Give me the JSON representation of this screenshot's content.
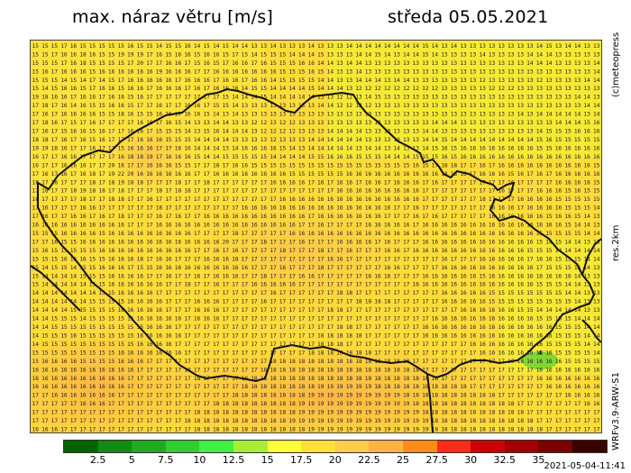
{
  "header": {
    "title": "max. náraz větru [m/s]",
    "date": "středa 05.05.2021"
  },
  "side_labels": {
    "copyright": "(c)meteopress",
    "resolution": "res.2km",
    "model": "WRFv3.9-ARW-S1"
  },
  "timestamp": "2021-05-04-11:41",
  "colorbar": {
    "colors": [
      "#006400",
      "#138b13",
      "#22aa22",
      "#33cc33",
      "#44ee44",
      "#aaee33",
      "#ffff33",
      "#ffe034",
      "#ffcc4d",
      "#ffb347",
      "#ff8c1a",
      "#ff2a1a",
      "#cc0000",
      "#a00000",
      "#7a0000",
      "#3a0000"
    ],
    "tick_labels": [
      "2.5",
      "5",
      "7.5",
      "10",
      "12.5",
      "15",
      "17.5",
      "20",
      "22.5",
      "25",
      "27.5",
      "30",
      "32.5",
      "35"
    ]
  },
  "map": {
    "region": "Czech Republic",
    "value_rows": [
      "15 15 15 17 16 15 15 15 15 15 16 15 15 14 15 15 16 14 15 14 15 14 14 13 13 14 13 13 13 14 13 13 13 14 14 14 14 14 14 14 14 15 14 13 14 13 13 13 13 13 13 13 13 14 15 13 14 14 13 13",
      "15 15 17 16 16 18 16 15 15 19 19 19 17 16 15 16 16 15 16 16 15 17 15 14 15 15 15 14 14 14 15 13 13 13 14 14 15 14 13 14 14 15 14 13 13 13 13 14 13 13 13 13 14 14 14 13 13 13 13 13",
      "15 15 15 17 16 18 15 15 15 15 17 20 17 17 16 16 17 15 16 15 17 16 16 17 16 15 15 15 16 16 14 14 13 14 14 13 13 13 13 13 13 13 13 13 13 13 13 13 13 13 13 13 14 14 14 13 13 13 13 14",
      "15 16 17 16 16 16 15 16 16 16 16 16 16 19 16 16 16 17 17 16 16 16 16 16 16 16 15 15 15 16 15 14 13 13 14 13 13 13 13 13 13 13 13 13 13 13 13 13 13 13 13 13 13 13 13 13 13 13 13 14",
      "15 15 15 14 15 14 17 14 15 17 16 16 16 16 16 17 16 16 16 17 16 16 17 16 16 14 15 15 15 15 14 14 13 13 14 14 14 13 14 14 13 13 13 13 13 13 13 12 13 13 13 13 13 12 13 13 13 13 14 14",
      "15 14 15 16 16 15 17 16 16 15 16 16 17 16 16 16 17 16 17 16 16 16 14 15 15 14 14 14 14 15 14 14 14 13 12 12 12 12 12 12 12 12 12 13 13 13 13 13 12 12 12 13 13 13 13 13 13 13 13 13",
      "19 18 16 16 17 16 16 17 16 16 15 16 17 17 17 17 17 17 17 17 15 14 14 14 15 14 14 14 14 14 13 13 12 12 13 14 15 13 13 13 13 13 13 13 13 13 13 13 13 13 13 13 13 13 13 13 13 14 14 13",
      "17 18 17 16 14 16 15 15 16 16 15 17 17 16 17 17 16 16 17 15 15 14 13 13 13 13 13 13 13 13 14 14 12 12 12 12 13 13 13 13 13 13 13 13 13 13 13 13 13 13 13 13 13 13 13 13 13 13 14 14",
      "17 16 17 16 16 16 16 15 15 18 16 15 15 16 16 17 16 16 15 14 13 14 13 13 13 13 13 13 13 13 13 13 13 13 13 13 13 13 13 13 13 13 13 13 13 13 13 13 13 13 13 14 13 14 14 14 14 14 13 14",
      "17 18 16 17 15 17 16 17 17 17 17 16 16 17 16 15 14 13 13 14 14 13 13 12 12 13 12 12 13 13 13 13 13 13 13 13 13 13 13 13 13 13 14 14 14 13 13 13 13 13 13 13 13 13 13 14 14 14 15 16",
      "17 16 17 15 16 16 15 16 17 17 16 16 17 15 15 15 14 13 15 16 14 14 14 13 12 12 12 12 13 13 13 14 14 14 14 13 13 13 13 13 13 14 14 13 13 13 13 13 13 13 13 13 13 14 15 15 15 16 16 16",
      "18 18 17 16 17 16 15 16 17 17 17 16 16 16 15 15 15 14 14 14 14 13 13 13 13 12 13 13 13 14 14 14 14 14 14 13 13 13 13 13 13 14 14 15 14 14 14 14 14 14 14 14 14 15 16 15 15 15 15 15",
      "19 19 18 16 17 17 16 17 17 15 16 16 16 17 17 16 16 14 14 14 13 14 16 16 16 16 15 14 13 14 14 14 14 14 13 14 14 13 14 13 13 14 15 16 15 16 16 16 16 16 16 16 16 15 15 16 16 16 16 16",
      "16 17 17 16 16 17 17 17 17 16 18 18 19 17 16 16 16 15 14 14 15 15 15 15 15 14 14 14 14 15 15 16 16 16 15 15 15 14 14 14 15 15 15 16 15 16 16 16 16 16 16 16 16 16 16 16 16 16 16 16",
      "16 17 17 16 16 16 17 17 20 16 17 17 16 16 16 15 15 17 17 18 17 16 16 15 15 15 15 15 15 15 15 15 15 15 15 15 15 15 15 15 16 15 17 18 18 17 17 16 17 16 16 16 16 16 16 16 16 16 16 15",
      "17 16 17 16 17 16 18 17 19 22 20 16 16 16 16 16 16 17 17 16 16 16 16 16 16 16 16 15 15 15 15 15 15 16 16 16 16 16 16 16 16 16 16 18 18 16 17 16 16 16 15 16 17 16 17 16 16 16 16 16",
      "18 17 18 17 17 17 18 17 18 19 18 18 17 17 17 18 17 17 18 17 17 17 17 17 17 16 16 16 16 17 16 17 16 16 17 16 16 17 16 16 16 17 16 17 17 17 17 17 17 17 16 17 17 17 17 16 16 16 16 15",
      "17 18 17 17 18 19 18 18 17 18 17 17 17 18 17 18 18 17 17 17 17 17 17 17 17 17 17 17 17 17 17 17 16 16 16 16 16 16 16 16 16 17 17 17 17 17 17 17 17 16 17 17 17 16 16 16 15 16 15 15",
      "18 17 17 17 17 18 17 17 18 18 17 17 16 17 17 17 17 17 17 17 17 17 17 17 17 17 16 16 16 16 16 16 16 16 16 16 16 16 16 16 16 17 17 17 17 17 17 18 17 17 17 16 16 16 16 15 15 15 15 15",
      "17 16 17 17 17 16 16 17 17 17 17 17 17 18 17 17 17 17 17 17 17 17 16 16 16 16 16 16 16 16 16 16 16 16 16 16 16 16 17 17 16 17 17 17 17 17 17 17 16 16 16 17 16 16 16 16 15 15 15 14",
      "17 16 17 17 16 16 17 16 17 18 17 17 17 16 17 16 17 17 16 16 16 16 16 16 16 16 16 16 16 17 16 16 16 16 16 16 16 17 17 17 16 17 16 17 17 17 17 17 16 16 16 16 16 16 15 16 16 15 14 13",
      "16 16 16 16 16 16 16 16 16 16 17 17 17 16 16 16 16 16 16 16 16 16 16 16 16 16 16 16 17 17 16 17 17 17 17 16 16 16 16 16 17 16 16 16 16 16 16 16 16 16 16 16 16 16 16 16 15 14 14 13",
      "15 15 15 16 16 16 16 15 16 16 16 16 16 16 16 16 16 17 17 17 17 18 17 17 17 17 17 16 16 16 16 16 16 16 16 16 16 16 16 16 16 16 16 16 16 16 16 16 16 16 16 16 16 15 15 15 15 15 14 14",
      "17 17 16 15 15 16 16 16 16 16 16 16 16 16 16 16 16 16 16 16 20 17 17 17 18 17 17 17 16 17 17 17 16 16 16 16 17 16 17 17 17 16 16 16 16 16 16 16 16 16 16 16 16 15 14 15 14 14 13 13",
      "15 16 15 15 15 15 15 16 16 16 16 16 16 16 16 16 16 17 17 16 17 16 17 17 17 17 18 17 17 17 18 17 17 16 17 17 17 16 16 17 16 16 16 16 16 16 16 16 16 16 16 16 15 15 15 14 14 14 14 14",
      "15 15 15 16 16 16 15 15 16 16 16 18 17 16 16 17 17 17 16 16 16 18 17 17 17 17 17 17 17 17 17 16 16 17 17 17 17 17 17 17 17 17 17 16 17 17 17 16 16 16 16 16 17 16 16 15 15 15 14 14",
      "15 14 15 15 14 15 15 16 16 16 17 15 15 16 16 16 16 16 16 16 16 16 16 17 17 17 16 17 17 17 18 17 17 17 17 17 17 16 16 17 17 17 17 16 16 16 16 16 16 16 16 16 16 17 15 15 15 15 14 13",
      "15 14 14 14 14 15 15 15 16 16 16 16 17 17 16 17 17 16 17 16 16 16 17 17 18 17 17 17 16 16 17 17 17 17 17 16 16 16 17 17 17 16 16 16 16 16 16 15 16 16 16 16 16 16 16 16 16 14 13 13",
      "15 14 14 14 14 14 15 15 16 16 16 16 16 16 17 17 18 17 17 16 17 17 17 16 16 16 16 16 17 17 17 17 17 17 17 17 17 17 17 17 16 16 16 16 16 16 16 16 16 16 16 16 16 15 15 15 14 14 13 13",
      "14 14 14 14 14 14 14 15 15 16 16 16 16 17 17 17 17 17 17 17 17 17 17 17 17 16 17 17 17 17 17 17 18 18 17 17 17 17 17 17 17 17 17 16 16 16 16 16 15 15 15 15 15 15 15 15 14 14 13 13",
      "14 14 14 14 14 14 15 15 15 15 16 16 16 16 17 17 17 16 16 16 17 17 17 17 16 17 17 17 17 17 17 17 17 17 18 18 18 18 17 17 17 17 17 16 16 16 16 16 15 15 15 15 15 15 15 15 15 14 13 13",
      "14 14 14 14 15 15 15 15 15 16 16 16 16 16 17 17 17 16 16 16 17 17 17 17 17 17 17 17 17 17 17 18 18 17 17 17 17 17 17 17 17 17 17 17 17 16 16 16 16 16 16 15 15 14 14 14 14 14 13 13",
      "14 14 15 15 15 14 15 15 15 15 15 16 16 16 16 16 17 16 16 16 17 17 17 17 17 17 17 17 17 17 17 17 17 17 17 17 17 17 17 17 17 17 16 16 16 16 16 16 16 16 16 16 16 15 15 15 15 14 14 14",
      "14 14 15 15 15 15 15 15 15 15 15 15 16 16 16 17 17 17 17 17 17 17 17 17 17 17 17 17 17 17 17 17 18 18 17 17 17 17 17 17 17 16 16 16 16 16 16 16 16 16 16 16 16 16 16 15 15 15 14 14",
      "14 15 15 15 16 15 15 15 15 15 15 16 16 16 16 16 17 17 17 17 17 17 17 17 17 17 17 17 17 17 18 18 18 18 18 17 17 17 17 17 17 16 16 16 16 16 16 16 16 16 16 16 16 16 16 15 15 15 14 14",
      "14 15 15 15 15 15 15 15 15 15 15 16 16 16 16 17 17 17 17 17 17 17 17 17 17 17 17 17 17 17 18 18 18 17 17 17 17 17 17 17 17 17 17 17 17 17 16 16 16 16 16 16 16 16 15 15 15 15 14 14",
      "15 15 15 15 15 15 15 15 15 16 16 16 16 16 16 16 17 17 17 17 17 17 17 17 17 17 17 17 17 18 18 18 18 18 18 18 17 17 17 17 17 17 17 17 17 17 17 16 16 16 16 16 16 16 16 15 15 15 15 14",
      "15 16 16 16 16 15 15 15 15 16 16 16 17 17 17 17 17 17 17 17 17 17 17 17 17 18 18 18 18 18 18 18 18 18 18 18 18 18 18 18 17 17 17 17 17 17 17 17 17 17 16 16 16 16 16 16 15 15 15 15",
      "16 16 16 16 16 16 16 16 16 16 16 17 17 17 17 17 18 17 17 17 17 17 17 17 18 18 18 18 18 18 18 18 18 18 18 18 18 18 18 18 18 17 17 17 17 17 17 17 17 17 17 17 17 16 16 16 16 16 16 16",
      "16 16 16 16 16 16 16 16 16 16 17 17 17 17 17 17 17 18 17 17 17 17 18 18 18 18 18 18 18 18 18 18 18 18 18 18 18 18 18 18 18 18 18 17 17 17 17 17 17 17 17 17 17 16 16 16 16 16 16 16",
      "16 16 16 16 16 16 16 16 16 16 17 17 17 17 17 17 17 17 17 17 17 17 18 18 18 18 18 18 18 18 19 19 19 19 19 19 18 18 18 18 18 18 18 18 18 18 17 17 17 17 17 17 17 17 16 16 16 16 16 16",
      "17 17 16 16 16 16 16 16 16 17 17 17 17 17 17 17 17 17 17 17 17 18 18 18 18 18 18 18 18 19 19 19 19 19 19 19 19 19 19 18 18 18 18 18 18 18 18 18 18 17 17 17 17 17 17 17 16 16 16 16",
      "17 17 17 17 17 16 16 16 17 17 17 17 17 17 17 17 17 17 17 18 18 18 18 18 18 18 18 18 19 19 19 19 19 19 19 19 19 19 19 19 18 18 18 18 18 18 18 18 18 18 18 17 17 17 17 17 17 17 16 16",
      "17 17 17 17 17 17 17 17 17 17 17 17 17 17 17 17 17 18 18 18 18 18 18 18 18 18 18 18 19 19 19 19 19 19 19 19 19 19 19 19 19 18 18 18 18 18 18 18 18 18 18 18 17 17 17 17 17 17 17 17",
      "17 17 17 17 17 17 17 17 17 17 17 17 17 17 17 17 18 18 18 18 18 18 18 18 18 18 18 19 19 19 19 19 19 19 19 19 19 19 19 19 19 19 18 18 18 18 18 18 18 18 18 18 18 17 17 17 17 17 17 17",
      "16 16 16 17 17 17 17 17 17 17 17 17 17 17 17 17 17 18 18 18 18 18 18 18 18 18 18 18 18 19 19 19 19 19 19 19 19 19 19 19 19 19 18 18 18 18 18 18 18 18 18 18 18 18 17 17 17 17 17 17"
    ],
    "highlighted_value": "4"
  }
}
